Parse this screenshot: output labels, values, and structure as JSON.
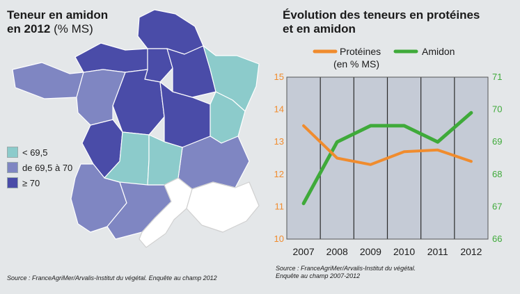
{
  "colors": {
    "low": "#8ccbcb",
    "mid": "#7f86c2",
    "high": "#4a4ca8",
    "blank": "#ffffff",
    "proteines": "#f08c2e",
    "amidon": "#3faa3a",
    "plot_bg": "#c5cbd6"
  },
  "map": {
    "title_line1": "Teneur en amidon",
    "title_line2": "en 2012",
    "title_unit": "(% MS)",
    "legend": [
      {
        "label": "< 69,5",
        "color": "#8ccbcb"
      },
      {
        "label": "de 69,5 à 70",
        "color": "#7f86c2"
      },
      {
        "label": "≥ 70",
        "color": "#4a4ca8"
      }
    ],
    "source": "Source : FranceAgriMer/Arvalis-Institut du végétal. Enquête au champ 2012"
  },
  "chart_data": {
    "type": "line",
    "title_line1": "Évolution des teneurs en protéines",
    "title_line2": "et en amidon",
    "categories": [
      "2007",
      "2008",
      "2009",
      "2010",
      "2011",
      "2012"
    ],
    "series": [
      {
        "name": "Protéines",
        "name_sub": "(en % MS)",
        "axis": "left",
        "values": [
          13.5,
          12.5,
          12.3,
          12.7,
          12.75,
          12.4
        ]
      },
      {
        "name": "Amidon",
        "axis": "right",
        "values": [
          67.1,
          69.0,
          69.5,
          69.5,
          69.0,
          69.9
        ]
      }
    ],
    "left_axis": {
      "ylim": [
        10,
        15
      ],
      "ticks": [
        "10",
        "11",
        "12",
        "13",
        "14",
        "15"
      ]
    },
    "right_axis": {
      "ylim": [
        66,
        71
      ],
      "ticks": [
        "66",
        "67",
        "68",
        "69",
        "70",
        "71"
      ]
    },
    "grid": "vertical",
    "legend": "top",
    "source_line1": "Source : FranceAgriMer/Arvalis-Institut du végétal.",
    "source_line2": "Enquête au champ 2007-2012"
  }
}
